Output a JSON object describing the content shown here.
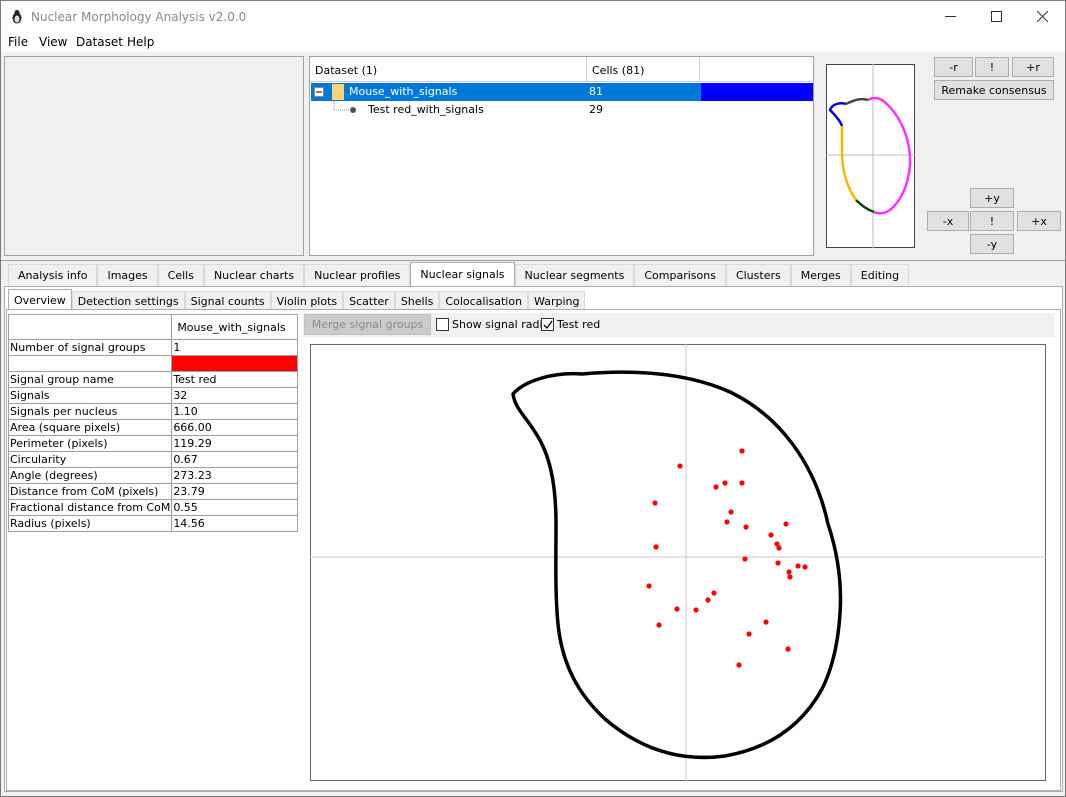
{
  "window": {
    "title": "Nuclear Morphology Analysis v2.0.0"
  },
  "menu": [
    "File",
    "View",
    "Dataset",
    "Help"
  ],
  "tree": {
    "col_dataset": "Dataset (1)",
    "col_cells": "Cells (81)",
    "rows": [
      {
        "name": "Mouse_with_signals",
        "cells": "81",
        "selected": true,
        "color": "#0000ff"
      },
      {
        "name": "Test red_with_signals",
        "cells": "29",
        "selected": false
      }
    ]
  },
  "consensus_buttons": {
    "minus_r": "-r",
    "bang_r": "!",
    "plus_r": "+r",
    "remake": "Remake consensus",
    "plus_y": "+y",
    "minus_x": "-x",
    "bang_xy": "!",
    "plus_x": "+x",
    "minus_y": "-y"
  },
  "main_tabs": [
    "Analysis info",
    "Images",
    "Cells",
    "Nuclear charts",
    "Nuclear profiles",
    "Nuclear signals",
    "Nuclear segments",
    "Comparisons",
    "Clusters",
    "Merges",
    "Editing"
  ],
  "active_main_tab": "Nuclear signals",
  "sub_tabs": [
    "Overview",
    "Detection settings",
    "Signal counts",
    "Violin plots",
    "Scatter",
    "Shells",
    "Colocalisation",
    "Warping"
  ],
  "active_sub_tab": "Overview",
  "stats_table": {
    "column": "Mouse_with_signals",
    "rows": [
      {
        "label": "Number of signal groups",
        "value": "1"
      },
      {
        "label": "",
        "value": "",
        "swatch": "#ff0000"
      },
      {
        "label": "Signal group name",
        "value": "Test red"
      },
      {
        "label": "Signals",
        "value": "32"
      },
      {
        "label": "Signals per nucleus",
        "value": "1.10"
      },
      {
        "label": "Area (square pixels)",
        "value": "666.00"
      },
      {
        "label": "Perimeter (pixels)",
        "value": "119.29"
      },
      {
        "label": "Circularity",
        "value": "0.67"
      },
      {
        "label": "Angle (degrees)",
        "value": "273.23"
      },
      {
        "label": "Distance from CoM (pixels)",
        "value": "23.79"
      },
      {
        "label": "Fractional distance from CoM",
        "value": "0.55"
      },
      {
        "label": "Radius (pixels)",
        "value": "14.56"
      }
    ]
  },
  "toolbar": {
    "merge_label": "Merge signal groups",
    "show_radii_label": "Show signal radii",
    "show_radii_checked": false,
    "test_red_label": "Test red",
    "test_red_checked": true
  },
  "colors": {
    "signal": "#ff0000",
    "selection": "#0078d7",
    "segment_magenta": "#ff33ff",
    "segment_orange": "#f5b800",
    "segment_blue": "#0000cc",
    "segment_green": "#004d00",
    "segment_gray": "#444444"
  }
}
